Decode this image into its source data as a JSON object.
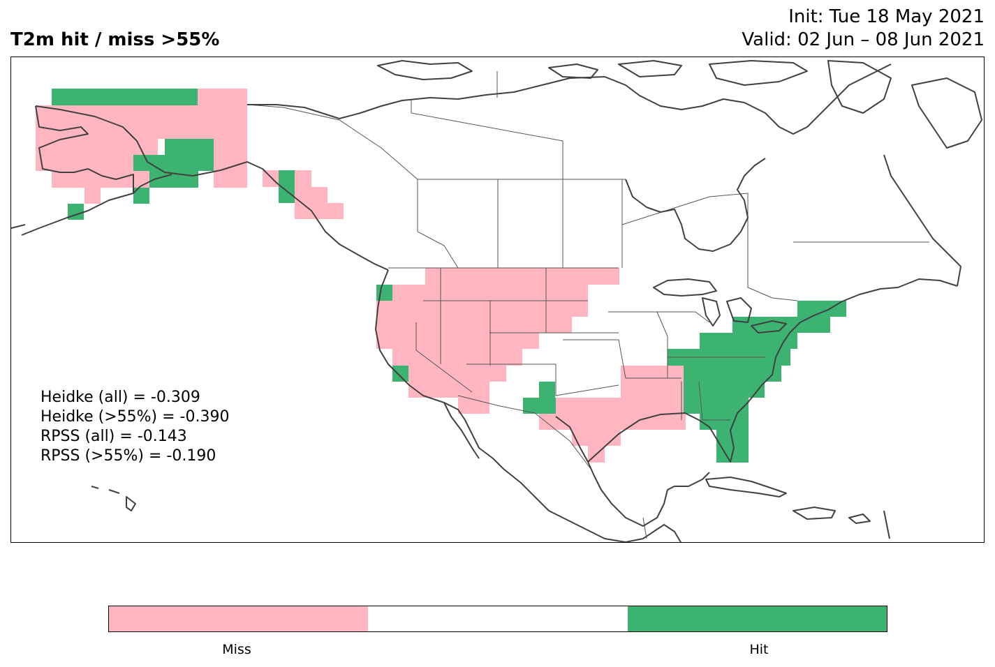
{
  "title": {
    "main": "T2m hit / miss  >55%",
    "init": "Init: Tue 18 May 2021",
    "valid": "Valid: 02 Jun – 08 Jun 2021"
  },
  "scores": [
    "Heidke (all) = -0.309",
    "Heidke (>55%) = -0.390",
    "RPSS (all) = -0.143",
    "RPSS (>55%) = -0.190"
  ],
  "legend": {
    "labels": {
      "miss": "Miss",
      "hit": "Hit"
    },
    "segments": [
      "miss",
      "none",
      "hit"
    ]
  },
  "colors": {
    "miss": "#ffb6c1",
    "hit": "#3cb371",
    "none": "#ffffff",
    "coast": "#404040",
    "border": "#555555"
  }
}
